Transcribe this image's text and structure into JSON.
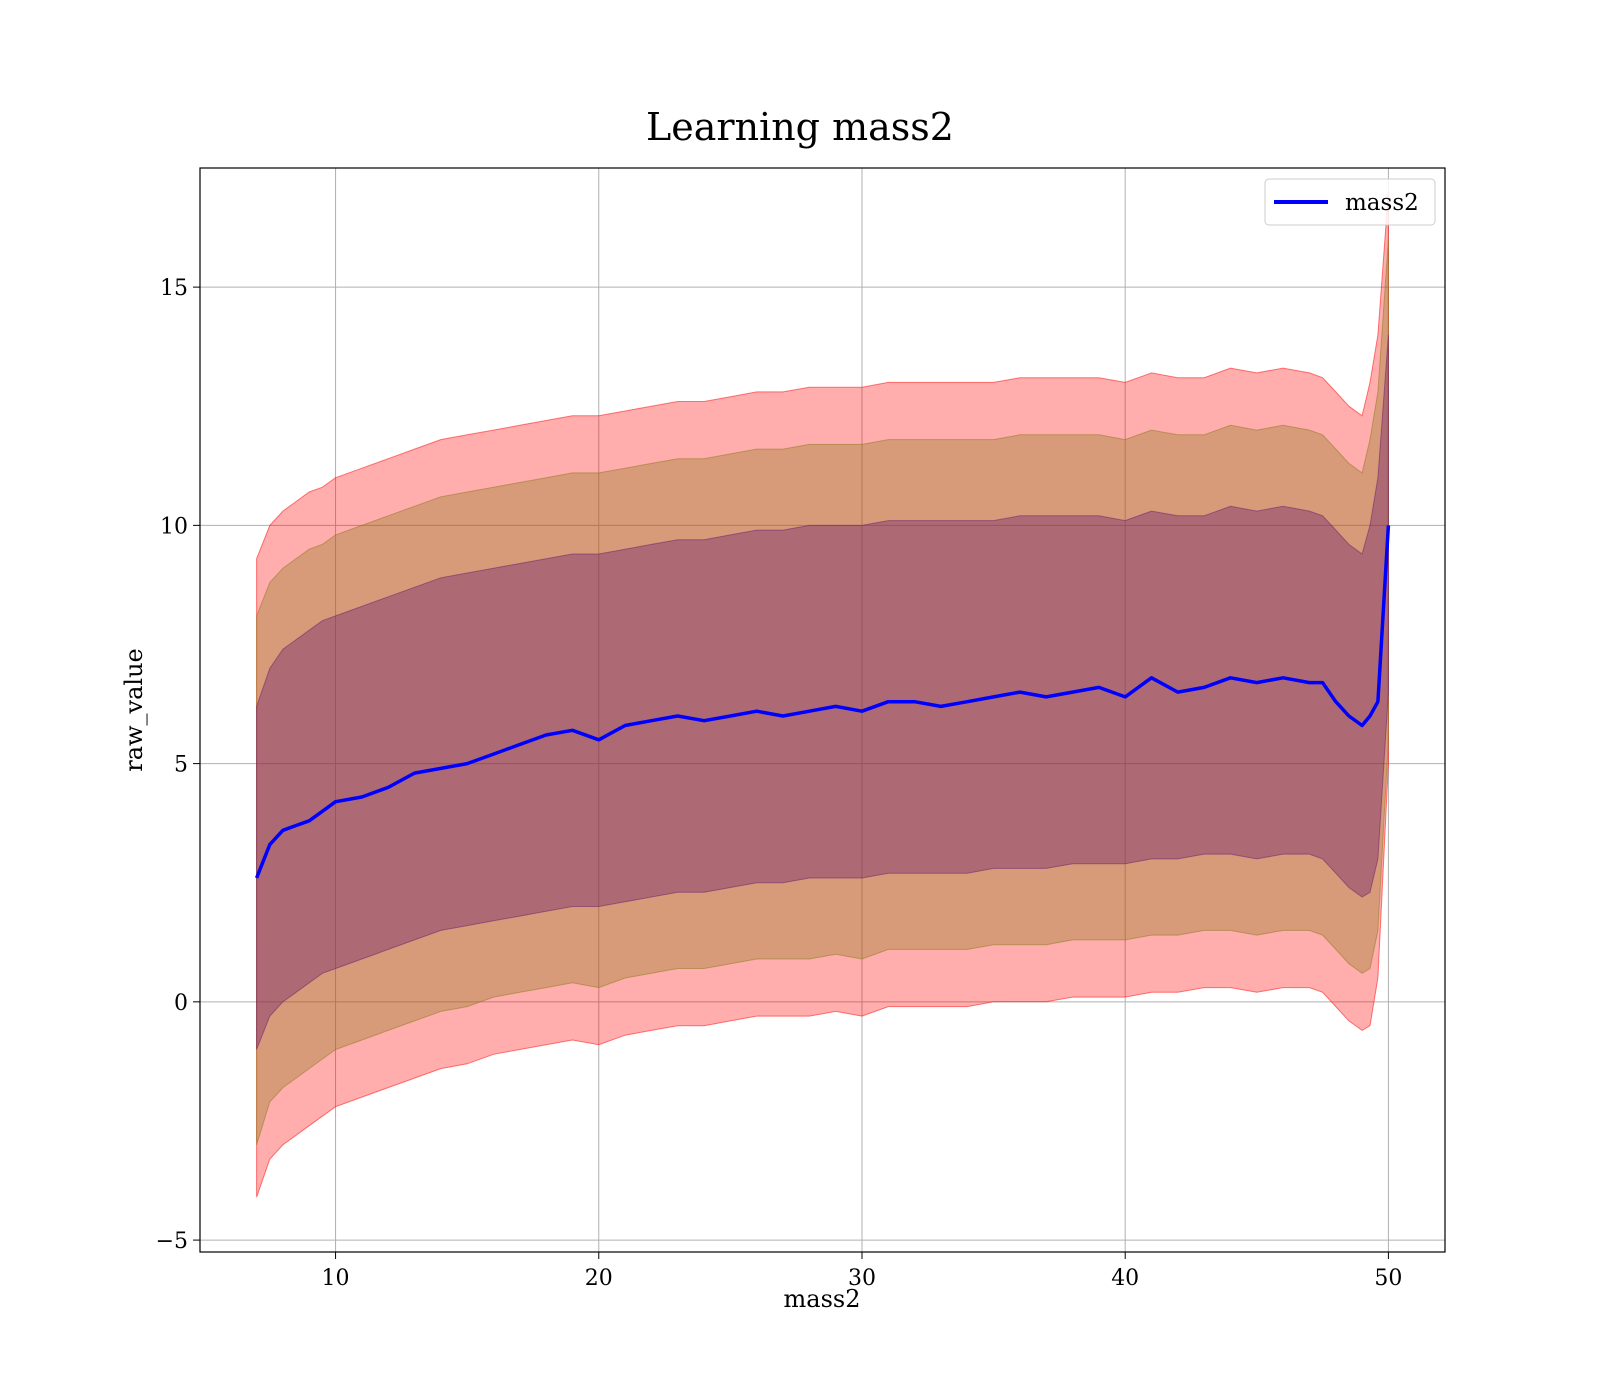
{
  "chart_data": {
    "type": "line",
    "title": "Learning mass2",
    "xlabel": "mass2",
    "ylabel": "raw_value",
    "xlim": [
      4.85,
      52.15
    ],
    "ylim": [
      -5.25,
      17.5
    ],
    "xticks": [
      10,
      20,
      30,
      40,
      50
    ],
    "yticks": [
      -5,
      0,
      5,
      10,
      15
    ],
    "xtick_labels": [
      "10",
      "20",
      "30",
      "40",
      "50"
    ],
    "ytick_labels": [
      "−5",
      "0",
      "5",
      "10",
      "15"
    ],
    "grid": true,
    "legend": {
      "location": "top-right",
      "entries": [
        "mass2"
      ]
    },
    "series": [
      {
        "name": "mass2",
        "color": "#0000ff",
        "x": [
          7,
          7.5,
          8,
          8.5,
          9,
          9.5,
          10,
          11,
          12,
          13,
          14,
          15,
          16,
          17,
          18,
          19,
          20,
          21,
          22,
          23,
          24,
          25,
          26,
          27,
          28,
          29,
          30,
          31,
          32,
          33,
          34,
          35,
          36,
          37,
          38,
          39,
          40,
          41,
          42,
          43,
          44,
          45,
          46,
          47,
          47.5,
          48,
          48.5,
          49,
          49.3,
          49.6,
          50
        ],
        "y": [
          2.6,
          3.3,
          3.6,
          3.7,
          3.8,
          4.0,
          4.2,
          4.3,
          4.5,
          4.8,
          4.9,
          5.0,
          5.2,
          5.4,
          5.6,
          5.7,
          5.5,
          5.8,
          5.9,
          6.0,
          5.9,
          6.0,
          6.1,
          6.0,
          6.1,
          6.2,
          6.1,
          6.3,
          6.3,
          6.2,
          6.3,
          6.4,
          6.5,
          6.4,
          6.5,
          6.6,
          6.4,
          6.8,
          6.5,
          6.6,
          6.8,
          6.7,
          6.8,
          6.7,
          6.7,
          6.3,
          6.0,
          5.8,
          6.0,
          6.3,
          10.0
        ]
      }
    ],
    "bands": [
      {
        "color": "#ff0000",
        "opacity": 0.32,
        "upper": [
          9.3,
          10.0,
          10.3,
          10.5,
          10.7,
          10.8,
          11.0,
          11.2,
          11.4,
          11.6,
          11.8,
          11.9,
          12.0,
          12.1,
          12.2,
          12.3,
          12.3,
          12.4,
          12.5,
          12.6,
          12.6,
          12.7,
          12.8,
          12.8,
          12.9,
          12.9,
          12.9,
          13.0,
          13.0,
          13.0,
          13.0,
          13.0,
          13.1,
          13.1,
          13.1,
          13.1,
          13.0,
          13.2,
          13.1,
          13.1,
          13.3,
          13.2,
          13.3,
          13.2,
          13.1,
          12.8,
          12.5,
          12.3,
          13.0,
          14.0,
          17.0
        ],
        "lower": [
          -4.1,
          -3.3,
          -3.0,
          -2.8,
          -2.6,
          -2.4,
          -2.2,
          -2.0,
          -1.8,
          -1.6,
          -1.4,
          -1.3,
          -1.1,
          -1.0,
          -0.9,
          -0.8,
          -0.9,
          -0.7,
          -0.6,
          -0.5,
          -0.5,
          -0.4,
          -0.3,
          -0.3,
          -0.3,
          -0.2,
          -0.3,
          -0.1,
          -0.1,
          -0.1,
          -0.1,
          0.0,
          0.0,
          0.0,
          0.1,
          0.1,
          0.1,
          0.2,
          0.2,
          0.3,
          0.3,
          0.2,
          0.3,
          0.3,
          0.2,
          -0.1,
          -0.4,
          -0.6,
          -0.5,
          0.5,
          5.0
        ]
      },
      {
        "color": "#8b7a1a",
        "opacity": 0.35,
        "upper": [
          8.1,
          8.8,
          9.1,
          9.3,
          9.5,
          9.6,
          9.8,
          10.0,
          10.2,
          10.4,
          10.6,
          10.7,
          10.8,
          10.9,
          11.0,
          11.1,
          11.1,
          11.2,
          11.3,
          11.4,
          11.4,
          11.5,
          11.6,
          11.6,
          11.7,
          11.7,
          11.7,
          11.8,
          11.8,
          11.8,
          11.8,
          11.8,
          11.9,
          11.9,
          11.9,
          11.9,
          11.8,
          12.0,
          11.9,
          11.9,
          12.1,
          12.0,
          12.1,
          12.0,
          11.9,
          11.6,
          11.3,
          11.1,
          11.8,
          12.8,
          16.0
        ],
        "lower": [
          -3.0,
          -2.1,
          -1.8,
          -1.6,
          -1.4,
          -1.2,
          -1.0,
          -0.8,
          -0.6,
          -0.4,
          -0.2,
          -0.1,
          0.1,
          0.2,
          0.3,
          0.4,
          0.3,
          0.5,
          0.6,
          0.7,
          0.7,
          0.8,
          0.9,
          0.9,
          0.9,
          1.0,
          0.9,
          1.1,
          1.1,
          1.1,
          1.1,
          1.2,
          1.2,
          1.2,
          1.3,
          1.3,
          1.3,
          1.4,
          1.4,
          1.5,
          1.5,
          1.4,
          1.5,
          1.5,
          1.4,
          1.1,
          0.8,
          0.6,
          0.7,
          1.5,
          5.5
        ]
      },
      {
        "color": "#6b1a6b",
        "opacity": 0.38,
        "upper": [
          6.2,
          7.0,
          7.4,
          7.6,
          7.8,
          8.0,
          8.1,
          8.3,
          8.5,
          8.7,
          8.9,
          9.0,
          9.1,
          9.2,
          9.3,
          9.4,
          9.4,
          9.5,
          9.6,
          9.7,
          9.7,
          9.8,
          9.9,
          9.9,
          10.0,
          10.0,
          10.0,
          10.1,
          10.1,
          10.1,
          10.1,
          10.1,
          10.2,
          10.2,
          10.2,
          10.2,
          10.1,
          10.3,
          10.2,
          10.2,
          10.4,
          10.3,
          10.4,
          10.3,
          10.2,
          9.9,
          9.6,
          9.4,
          10.0,
          11.0,
          14.0
        ],
        "lower": [
          -1.0,
          -0.3,
          0.0,
          0.2,
          0.4,
          0.6,
          0.7,
          0.9,
          1.1,
          1.3,
          1.5,
          1.6,
          1.7,
          1.8,
          1.9,
          2.0,
          2.0,
          2.1,
          2.2,
          2.3,
          2.3,
          2.4,
          2.5,
          2.5,
          2.6,
          2.6,
          2.6,
          2.7,
          2.7,
          2.7,
          2.7,
          2.8,
          2.8,
          2.8,
          2.9,
          2.9,
          2.9,
          3.0,
          3.0,
          3.1,
          3.1,
          3.0,
          3.1,
          3.1,
          3.0,
          2.7,
          2.4,
          2.2,
          2.3,
          3.0,
          6.5
        ]
      }
    ]
  }
}
